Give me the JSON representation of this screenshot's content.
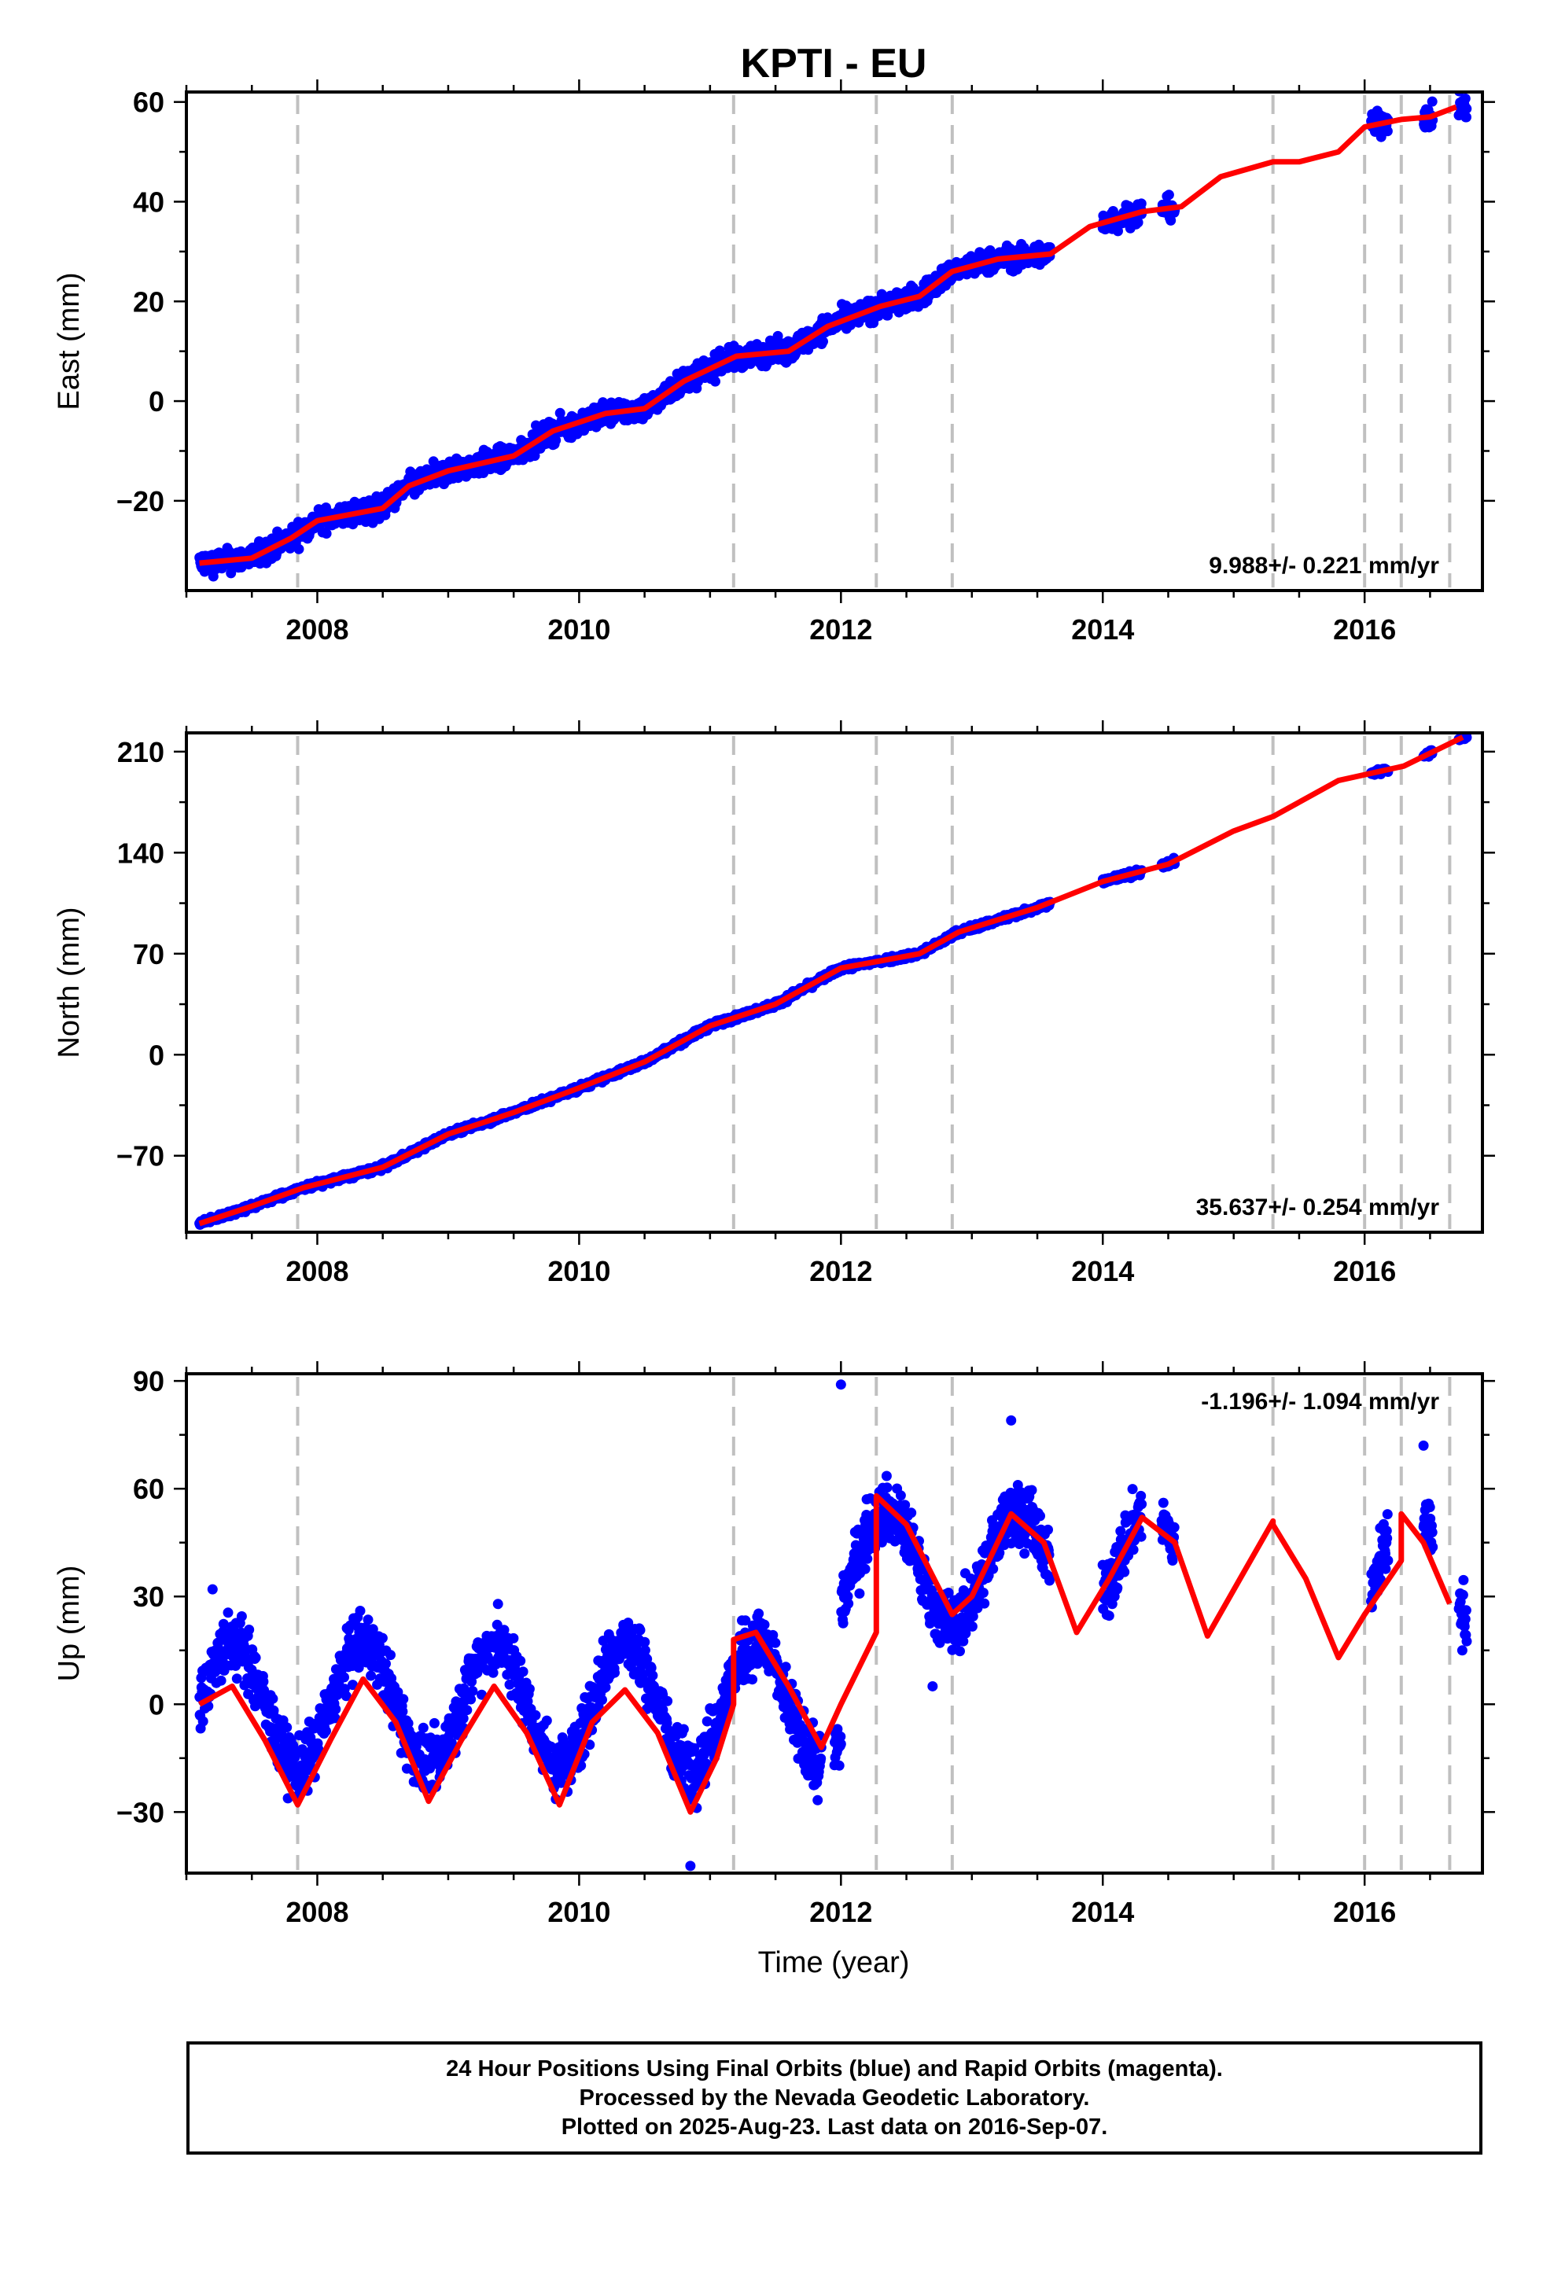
{
  "chart_data": {
    "type": "scatter",
    "title": "KPTI - EU",
    "xlabel": "Time (year)",
    "xlim": [
      2007.0,
      2016.9
    ],
    "x_ticks": [
      2008,
      2010,
      2012,
      2014,
      2016
    ],
    "x_tick_labels": [
      "2008",
      "2010",
      "2012",
      "2014",
      "2016"
    ],
    "event_lines": [
      2007.85,
      2011.18,
      2012.27,
      2012.85,
      2015.3,
      2016.0,
      2016.28,
      2016.65
    ],
    "panels": [
      {
        "id": "east",
        "ylabel": "East (mm)",
        "ylim": [
          -38,
          62
        ],
        "y_ticks": [
          -20,
          0,
          20,
          40,
          60
        ],
        "y_tick_labels": [
          "−20",
          "0",
          "20",
          "40",
          "60"
        ],
        "rate_label": "9.988+/- 0.221 mm/yr",
        "fit_x": [
          2007.1,
          2007.5,
          2007.8,
          2008.0,
          2008.5,
          2008.7,
          2009.0,
          2009.5,
          2009.8,
          2010.2,
          2010.5,
          2010.8,
          2011.2,
          2011.6,
          2011.9,
          2012.3,
          2012.6,
          2012.85,
          2013.2,
          2013.6,
          2013.9,
          2014.3,
          2014.6,
          2014.9,
          2015.3,
          2015.5,
          2015.8,
          2016.0,
          2016.28,
          2016.5,
          2016.7
        ],
        "fit_y": [
          -32.5,
          -31.5,
          -27.5,
          -24,
          -21.5,
          -17,
          -14,
          -11,
          -6,
          -2.5,
          -1.5,
          4,
          9,
          10,
          15,
          19,
          21,
          26,
          28.5,
          29.5,
          35,
          38,
          39,
          45,
          48,
          48,
          50,
          55,
          56.5,
          57,
          59
        ],
        "points": {
          "segments": [
            [
              2007.1,
              2013.6,
              -33,
              31
            ],
            [
              2014.0,
              2014.3,
              37,
              41
            ],
            [
              2014.45,
              2014.55,
              37,
              39
            ],
            [
              2016.05,
              2016.18,
              56,
              57.5
            ],
            [
              2016.45,
              2016.52,
              57,
              58
            ],
            [
              2016.72,
              2016.78,
              59,
              60
            ]
          ],
          "scatter_mm": 1.6
        }
      },
      {
        "id": "north",
        "ylabel": "North (mm)",
        "ylim": [
          -123,
          223
        ],
        "y_ticks": [
          -70,
          0,
          70,
          140,
          210
        ],
        "y_tick_labels": [
          "−70",
          "0",
          "70",
          "140",
          "210"
        ],
        "rate_label": "35.637+/- 0.254 mm/yr",
        "fit_x": [
          2007.1,
          2007.5,
          2007.9,
          2008.5,
          2009.0,
          2009.5,
          2010.0,
          2010.5,
          2011.0,
          2011.5,
          2012.0,
          2012.3,
          2012.6,
          2012.9,
          2013.5,
          2014.0,
          2014.5,
          2015.0,
          2015.3,
          2015.8,
          2016.3,
          2016.75
        ],
        "fit_y": [
          -117,
          -105,
          -92,
          -78,
          -55,
          -40,
          -23,
          -5,
          20,
          35,
          60,
          65,
          70,
          85,
          102,
          120,
          132,
          155,
          165,
          190,
          200,
          220
        ],
        "points": {
          "segments": [
            [
              2007.1,
              2013.6,
              -117,
              108
            ],
            [
              2014.0,
              2014.3,
              125,
              132
            ],
            [
              2014.45,
              2014.55,
              142,
              146
            ],
            [
              2016.05,
              2016.18,
              197,
              200
            ],
            [
              2016.45,
              2016.52,
              203,
              207
            ],
            [
              2016.72,
              2016.78,
              218,
              220
            ]
          ],
          "scatter_mm": 1.5
        }
      },
      {
        "id": "up",
        "ylabel": "Up (mm)",
        "ylim": [
          -47,
          92
        ],
        "y_ticks": [
          -30,
          0,
          30,
          60,
          90
        ],
        "y_tick_labels": [
          "−30",
          "0",
          "30",
          "60",
          "90"
        ],
        "rate_label": "-1.196+/- 1.094 mm/yr",
        "fit_x": [
          2007.1,
          2007.35,
          2007.6,
          2007.85,
          2008.1,
          2008.35,
          2008.6,
          2008.85,
          2009.1,
          2009.35,
          2009.6,
          2009.85,
          2010.1,
          2010.35,
          2010.6,
          2010.85,
          2011.05,
          2011.18,
          2011.18,
          2011.35,
          2011.6,
          2011.85,
          2012.0,
          2012.27,
          2012.27,
          2012.5,
          2012.85,
          2013.0,
          2013.3,
          2013.55,
          2013.8,
          2014.05,
          2014.3,
          2014.55,
          2014.8,
          2015.05,
          2015.3,
          2015.3,
          2015.55,
          2015.8,
          2016.0,
          2016.28,
          2016.28,
          2016.45,
          2016.65
        ],
        "fit_y": [
          0,
          5,
          -10,
          -28,
          -10,
          7,
          -5,
          -27,
          -10,
          5,
          -8,
          -28,
          -5,
          4,
          -8,
          -30,
          -15,
          0,
          18,
          20,
          5,
          -12,
          0,
          20,
          58,
          50,
          25,
          30,
          53,
          45,
          20,
          35,
          52,
          45,
          19,
          35,
          51,
          50,
          35,
          13,
          25,
          40,
          53,
          45,
          28
        ],
        "points": {
          "segments": [
            [
              2007.1,
              2011.85,
              null,
              null
            ],
            [
              2011.95,
              2013.6,
              null,
              null
            ],
            [
              2014.0,
              2014.3,
              null,
              null
            ],
            [
              2014.45,
              2014.55,
              null,
              null
            ],
            [
              2016.05,
              2016.18,
              null,
              null
            ],
            [
              2016.45,
              2016.52,
              null,
              null
            ],
            [
              2016.72,
              2016.78,
              null,
              null
            ]
          ],
          "scatter_mm": 6
        }
      }
    ]
  },
  "footer": {
    "line1": "24 Hour Positions Using Final Orbits (blue) and Rapid Orbits (magenta).",
    "line2": "Processed by the Nevada Geodetic Laboratory.",
    "line3": "Plotted on 2025-Aug-23. Last data on 2016-Sep-07."
  },
  "colors": {
    "points": "#0000ff",
    "fit": "#ff0000",
    "event_lines": "#c0c0c0"
  }
}
